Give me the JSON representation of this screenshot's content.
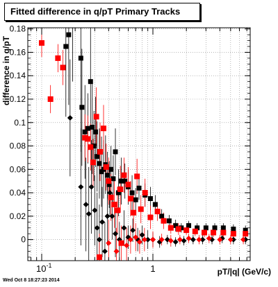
{
  "chart_data": {
    "type": "scatter",
    "title": "Fitted difference in q/pT  Primary Tracks",
    "xlabel": "pT/|q| (GeV/c)",
    "ylabel": "difference in q/pT",
    "x_scale": "log",
    "xlim": [
      0.075,
      7.5
    ],
    "ylim": [
      -0.018,
      0.181
    ],
    "x_tick_labels": [
      "10^-1",
      "1"
    ],
    "y_tick_labels": [
      "0",
      "0.02",
      "0.04",
      "0.06",
      "0.08",
      "0.1",
      "0.12",
      "0.14",
      "0.16",
      "0.18"
    ],
    "grid": true,
    "series": [
      {
        "color": "#000000",
        "marker": "mixed",
        "points": [
          {
            "x": 0.175,
            "y": 0.175,
            "m": "s",
            "e": 0.06
          },
          {
            "x": 0.165,
            "y": 0.165,
            "m": "s",
            "e": 0.06
          },
          {
            "x": 0.19,
            "y": 0.185,
            "m": "s",
            "e": 0.05
          },
          {
            "x": 0.18,
            "y": 0.104,
            "m": "d",
            "e": 0.05
          },
          {
            "x": 0.225,
            "y": 0.155,
            "m": "s",
            "e": 0.08
          },
          {
            "x": 0.23,
            "y": 0.113,
            "m": "s",
            "e": 0.05
          },
          {
            "x": 0.245,
            "y": 0.092,
            "m": "s",
            "e": 0.04
          },
          {
            "x": 0.26,
            "y": 0.095,
            "m": "s",
            "e": 0.03
          },
          {
            "x": 0.275,
            "y": 0.135,
            "m": "s",
            "e": 0.05
          },
          {
            "x": 0.285,
            "y": 0.096,
            "m": "s",
            "e": 0.04
          },
          {
            "x": 0.295,
            "y": 0.08,
            "m": "s",
            "e": 0.03
          },
          {
            "x": 0.305,
            "y": 0.092,
            "m": "s",
            "e": 0.03
          },
          {
            "x": 0.315,
            "y": 0.071,
            "m": "s",
            "e": 0.03
          },
          {
            "x": 0.33,
            "y": 0.065,
            "m": "s",
            "e": 0.03
          },
          {
            "x": 0.345,
            "y": 0.058,
            "m": "s",
            "e": 0.03
          },
          {
            "x": 0.36,
            "y": 0.06,
            "m": "s",
            "e": 0.025
          },
          {
            "x": 0.375,
            "y": 0.064,
            "m": "s",
            "e": 0.025
          },
          {
            "x": 0.39,
            "y": 0.055,
            "m": "s",
            "e": 0.02
          },
          {
            "x": 0.405,
            "y": 0.047,
            "m": "s",
            "e": 0.02
          },
          {
            "x": 0.42,
            "y": 0.06,
            "m": "s",
            "e": 0.02
          },
          {
            "x": 0.44,
            "y": 0.052,
            "m": "s",
            "e": 0.02
          },
          {
            "x": 0.46,
            "y": 0.075,
            "m": "s",
            "e": 0.02
          },
          {
            "x": 0.49,
            "y": 0.04,
            "m": "s",
            "e": 0.02
          },
          {
            "x": 0.52,
            "y": 0.05,
            "m": "s",
            "e": 0.02
          },
          {
            "x": 0.56,
            "y": 0.05,
            "m": "s",
            "e": 0.015
          },
          {
            "x": 0.6,
            "y": 0.045,
            "m": "s",
            "e": 0.015
          },
          {
            "x": 0.65,
            "y": 0.04,
            "m": "s",
            "e": 0.015
          },
          {
            "x": 0.7,
            "y": 0.034,
            "m": "s",
            "e": 0.01
          },
          {
            "x": 0.75,
            "y": 0.044,
            "m": "s",
            "e": 0.01
          },
          {
            "x": 0.85,
            "y": 0.038,
            "m": "s",
            "e": 0.01
          },
          {
            "x": 0.95,
            "y": 0.035,
            "m": "s",
            "e": 0.01
          },
          {
            "x": 1.05,
            "y": 0.03,
            "m": "s",
            "e": 0.008
          },
          {
            "x": 1.2,
            "y": 0.02,
            "m": "s",
            "e": 0.006
          },
          {
            "x": 1.4,
            "y": 0.016,
            "m": "s",
            "e": 0.005
          },
          {
            "x": 1.6,
            "y": 0.012,
            "m": "s",
            "e": 0.005
          },
          {
            "x": 1.8,
            "y": 0.01,
            "m": "s",
            "e": 0.004
          },
          {
            "x": 2.1,
            "y": 0.012,
            "m": "s",
            "e": 0.004
          },
          {
            "x": 2.5,
            "y": 0.01,
            "m": "s",
            "e": 0.004
          },
          {
            "x": 3.0,
            "y": 0.01,
            "m": "s",
            "e": 0.004
          },
          {
            "x": 3.6,
            "y": 0.01,
            "m": "s",
            "e": 0.004
          },
          {
            "x": 4.3,
            "y": 0.01,
            "m": "s",
            "e": 0.004
          },
          {
            "x": 5.3,
            "y": 0.009,
            "m": "s",
            "e": 0.004
          },
          {
            "x": 6.8,
            "y": 0.008,
            "m": "s",
            "e": 0.004
          },
          {
            "x": 0.225,
            "y": 0.045,
            "m": "d",
            "e": 0.05
          },
          {
            "x": 0.25,
            "y": 0.03,
            "m": "d",
            "e": 0.04
          },
          {
            "x": 0.265,
            "y": 0.022,
            "m": "d",
            "e": 0.04
          },
          {
            "x": 0.28,
            "y": 0.045,
            "m": "d",
            "e": 0.04
          },
          {
            "x": 0.3,
            "y": 0.025,
            "m": "d",
            "e": 0.03
          },
          {
            "x": 0.315,
            "y": 0.01,
            "m": "d",
            "e": 0.03
          },
          {
            "x": 0.33,
            "y": 0.0,
            "m": "d",
            "e": 0.03
          },
          {
            "x": 0.35,
            "y": 0.015,
            "m": "d",
            "e": 0.03
          },
          {
            "x": 0.37,
            "y": -0.01,
            "m": "d",
            "e": 0.025
          },
          {
            "x": 0.39,
            "y": 0.02,
            "m": "d",
            "e": 0.025
          },
          {
            "x": 0.41,
            "y": 0.04,
            "m": "d",
            "e": 0.02
          },
          {
            "x": 0.43,
            "y": 0.02,
            "m": "d",
            "e": 0.02
          },
          {
            "x": 0.46,
            "y": 0.005,
            "m": "d",
            "e": 0.02
          },
          {
            "x": 0.5,
            "y": 0.0,
            "m": "d",
            "e": 0.015
          },
          {
            "x": 0.55,
            "y": 0.01,
            "m": "d",
            "e": 0.015
          },
          {
            "x": 0.6,
            "y": 0.002,
            "m": "d",
            "e": 0.01
          },
          {
            "x": 0.66,
            "y": 0.008,
            "m": "d",
            "e": 0.01
          },
          {
            "x": 0.73,
            "y": 0.0,
            "m": "d",
            "e": 0.01
          },
          {
            "x": 0.8,
            "y": 0.004,
            "m": "d",
            "e": 0.008
          },
          {
            "x": 0.9,
            "y": 0.0,
            "m": "d",
            "e": 0.008
          },
          {
            "x": 1.0,
            "y": 0.0,
            "m": "d",
            "e": 0.006
          },
          {
            "x": 1.15,
            "y": -0.002,
            "m": "d",
            "e": 0.005
          },
          {
            "x": 1.35,
            "y": 0.0,
            "m": "d",
            "e": 0.004
          },
          {
            "x": 1.6,
            "y": -0.002,
            "m": "d",
            "e": 0.004
          },
          {
            "x": 1.9,
            "y": -0.001,
            "m": "d",
            "e": 0.004
          },
          {
            "x": 2.3,
            "y": 0.0,
            "m": "d",
            "e": 0.004
          },
          {
            "x": 2.8,
            "y": 0.0,
            "m": "d",
            "e": 0.004
          },
          {
            "x": 3.4,
            "y": 0.0,
            "m": "d",
            "e": 0.004
          },
          {
            "x": 4.2,
            "y": 0.001,
            "m": "d",
            "e": 0.004
          },
          {
            "x": 5.3,
            "y": 0.0,
            "m": "d",
            "e": 0.004
          },
          {
            "x": 6.8,
            "y": 0.0,
            "m": "d",
            "e": 0.004
          }
        ]
      },
      {
        "color": "#ff0000",
        "marker": "mixed",
        "points": [
          {
            "x": 0.1,
            "y": 0.168,
            "m": "s",
            "e": 0.012
          },
          {
            "x": 0.12,
            "y": 0.12,
            "m": "s",
            "e": 0.012
          },
          {
            "x": 0.14,
            "y": 0.155,
            "m": "s",
            "e": 0.012
          },
          {
            "x": 0.155,
            "y": 0.147,
            "m": "s",
            "e": 0.015
          },
          {
            "x": 0.245,
            "y": 0.087,
            "m": "s",
            "e": 0.02
          },
          {
            "x": 0.26,
            "y": 0.086,
            "m": "s",
            "e": 0.02
          },
          {
            "x": 0.275,
            "y": 0.079,
            "m": "s",
            "e": 0.02
          },
          {
            "x": 0.29,
            "y": 0.066,
            "m": "s",
            "e": 0.02
          },
          {
            "x": 0.31,
            "y": 0.105,
            "m": "s",
            "e": 0.025
          },
          {
            "x": 0.335,
            "y": 0.075,
            "m": "s",
            "e": 0.025
          },
          {
            "x": 0.36,
            "y": 0.095,
            "m": "s",
            "e": 0.02
          },
          {
            "x": 0.38,
            "y": 0.062,
            "m": "s",
            "e": 0.02
          },
          {
            "x": 0.4,
            "y": 0.05,
            "m": "s",
            "e": 0.02
          },
          {
            "x": 0.42,
            "y": 0.036,
            "m": "s",
            "e": 0.02
          },
          {
            "x": 0.45,
            "y": 0.03,
            "m": "s",
            "e": 0.02
          },
          {
            "x": 0.48,
            "y": 0.025,
            "m": "s",
            "e": 0.02
          },
          {
            "x": 0.51,
            "y": 0.043,
            "m": "s",
            "e": 0.02
          },
          {
            "x": 0.55,
            "y": 0.055,
            "m": "s",
            "e": 0.015
          },
          {
            "x": 0.6,
            "y": 0.047,
            "m": "s",
            "e": 0.015
          },
          {
            "x": 0.63,
            "y": 0.035,
            "m": "s",
            "e": 0.015
          },
          {
            "x": 0.67,
            "y": 0.023,
            "m": "s",
            "e": 0.015
          },
          {
            "x": 0.72,
            "y": 0.054,
            "m": "s",
            "e": 0.015
          },
          {
            "x": 0.78,
            "y": 0.026,
            "m": "s",
            "e": 0.012
          },
          {
            "x": 0.85,
            "y": 0.04,
            "m": "s",
            "e": 0.012
          },
          {
            "x": 0.95,
            "y": 0.019,
            "m": "s",
            "e": 0.01
          },
          {
            "x": 1.1,
            "y": 0.024,
            "m": "s",
            "e": 0.008
          },
          {
            "x": 1.25,
            "y": 0.016,
            "m": "s",
            "e": 0.007
          },
          {
            "x": 1.45,
            "y": 0.01,
            "m": "s",
            "e": 0.005
          },
          {
            "x": 1.7,
            "y": 0.009,
            "m": "s",
            "e": 0.005
          },
          {
            "x": 2.0,
            "y": 0.008,
            "m": "s",
            "e": 0.004
          },
          {
            "x": 2.4,
            "y": 0.007,
            "m": "s",
            "e": 0.004
          },
          {
            "x": 2.9,
            "y": 0.006,
            "m": "s",
            "e": 0.004
          },
          {
            "x": 3.5,
            "y": 0.006,
            "m": "s",
            "e": 0.004
          },
          {
            "x": 4.3,
            "y": 0.006,
            "m": "s",
            "e": 0.004
          },
          {
            "x": 5.3,
            "y": 0.005,
            "m": "s",
            "e": 0.004
          },
          {
            "x": 6.8,
            "y": 0.005,
            "m": "s",
            "e": 0.004
          },
          {
            "x": 0.33,
            "y": -0.015,
            "m": "s",
            "e": 0.02
          },
          {
            "x": 0.4,
            "y": -0.003,
            "m": "d",
            "e": 0.02
          },
          {
            "x": 0.47,
            "y": -0.01,
            "m": "d",
            "e": 0.02
          },
          {
            "x": 0.52,
            "y": -0.003,
            "m": "s",
            "e": 0.015
          },
          {
            "x": 0.58,
            "y": -0.005,
            "m": "d",
            "e": 0.015
          },
          {
            "x": 0.63,
            "y": 0.0,
            "m": "d",
            "e": 0.012
          },
          {
            "x": 0.7,
            "y": 0.002,
            "m": "d",
            "e": 0.012
          },
          {
            "x": 0.76,
            "y": -0.002,
            "m": "d",
            "e": 0.01
          },
          {
            "x": 0.84,
            "y": 0.0,
            "m": "d",
            "e": 0.01
          },
          {
            "x": 1.0,
            "y": 0.0,
            "m": "d",
            "e": 0.007
          },
          {
            "x": 1.2,
            "y": 0.0,
            "m": "d",
            "e": 0.005
          },
          {
            "x": 1.45,
            "y": -0.001,
            "m": "d",
            "e": 0.005
          },
          {
            "x": 1.75,
            "y": 0.0,
            "m": "d",
            "e": 0.004
          },
          {
            "x": 2.1,
            "y": 0.001,
            "m": "d",
            "e": 0.004
          },
          {
            "x": 2.6,
            "y": 0.0,
            "m": "d",
            "e": 0.004
          },
          {
            "x": 3.2,
            "y": 0.001,
            "m": "d",
            "e": 0.004
          },
          {
            "x": 4.0,
            "y": 0.0,
            "m": "d",
            "e": 0.004
          },
          {
            "x": 5.0,
            "y": 0.0,
            "m": "d",
            "e": 0.004
          },
          {
            "x": 6.5,
            "y": 0.0,
            "m": "d",
            "e": 0.004
          }
        ]
      }
    ]
  },
  "footer": {
    "timestamp": "Wed Oct  8 18:27:23 2014"
  }
}
